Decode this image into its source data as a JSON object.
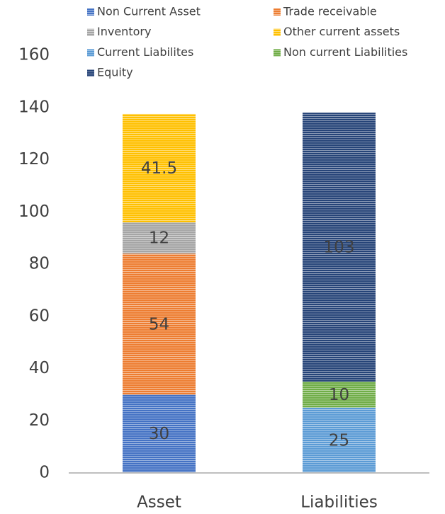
{
  "chart_data": {
    "type": "bar",
    "stacked": true,
    "categories": [
      "Asset",
      "Liabilities"
    ],
    "series": [
      {
        "name": "Non Current Asset",
        "color": "#4472c4",
        "values": [
          30,
          null
        ]
      },
      {
        "name": "Trade receivable",
        "color": "#ed7d31",
        "values": [
          54,
          null
        ]
      },
      {
        "name": "Inventory",
        "color": "#a5a5a5",
        "values": [
          12,
          null
        ]
      },
      {
        "name": "Other current assets",
        "color": "#ffc000",
        "values": [
          41.5,
          null
        ]
      },
      {
        "name": "Current Liabilites",
        "color": "#5b9bd5",
        "values": [
          null,
          25
        ]
      },
      {
        "name": "Non current Liabilities",
        "color": "#70ad47",
        "values": [
          null,
          10
        ]
      },
      {
        "name": "Equity",
        "color": "#264478",
        "values": [
          null,
          103
        ]
      }
    ],
    "ylim": [
      0,
      160
    ],
    "yticks": [
      0,
      20,
      40,
      60,
      80,
      100,
      120,
      140,
      160
    ],
    "legend": "top",
    "grid": false
  }
}
